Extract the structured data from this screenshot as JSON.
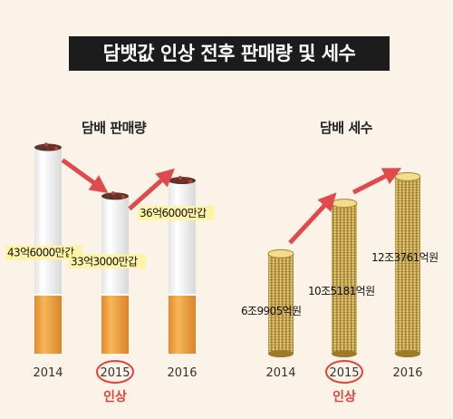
{
  "title": "담뱃값 인상 전후 판매량 및 세수",
  "colors": {
    "filter": "#f0a33f",
    "paper": "#ffffff",
    "coin": "#d9b65a",
    "arrow": "#e14a4d",
    "highlight": "#fff3a0",
    "circle": "#e0443b"
  },
  "icons": {
    "sales": "cigarette-icon",
    "tax": "coin-stack-icon",
    "trend": "arrow-icon"
  },
  "chart_data": [
    {
      "type": "bar",
      "title": "담배 판매량",
      "categories": [
        "2014",
        "2015",
        "2016"
      ],
      "values": [
        436000,
        333000,
        366000
      ],
      "unit": "만갑",
      "data_labels": [
        "43억6000만갑",
        "33억3000만갑",
        "36억6000만갑"
      ],
      "highlight": {
        "category": "2015",
        "label": "인상"
      }
    },
    {
      "type": "bar",
      "title": "담배 세수",
      "categories": [
        "2014",
        "2015",
        "2016"
      ],
      "values": [
        69905,
        105181,
        123761
      ],
      "unit": "억원",
      "data_labels": [
        "6조9905억원",
        "10조5181억원",
        "12조3761억원"
      ],
      "highlight": {
        "category": "2015",
        "label": "인상"
      }
    }
  ]
}
